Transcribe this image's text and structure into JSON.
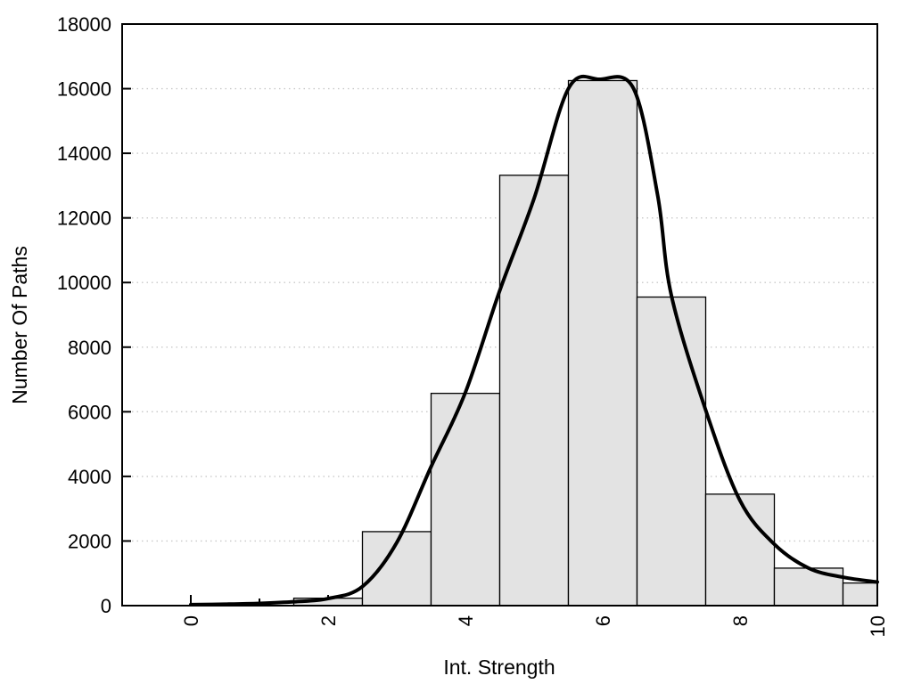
{
  "chart_data": {
    "type": "bar",
    "subtype": "histogram-with-density-curve",
    "title": "",
    "xlabel": "Int. Strength",
    "ylabel": "Number Of Paths",
    "xlim": [
      -1,
      10
    ],
    "ylim": [
      0,
      18000
    ],
    "x_major_ticks": [
      0,
      2,
      4,
      6,
      8,
      10
    ],
    "x_minor_ticks": [
      1,
      3,
      5,
      7,
      9
    ],
    "y_ticks": [
      0,
      2000,
      4000,
      6000,
      8000,
      10000,
      12000,
      14000,
      16000,
      18000
    ],
    "grid": {
      "horizontal": true,
      "vertical": false,
      "style": "dotted"
    },
    "legend": "none",
    "bars": {
      "bin_width": 1,
      "clip_max_x": 10,
      "centers": [
        2,
        3,
        4,
        5,
        6,
        7,
        8,
        9,
        10
      ],
      "values": [
        230,
        2290,
        6570,
        13320,
        16250,
        9550,
        3450,
        1160,
        700
      ]
    },
    "density_curve": {
      "points": [
        [
          0,
          30
        ],
        [
          0.5,
          45
        ],
        [
          1,
          70
        ],
        [
          1.5,
          120
        ],
        [
          2,
          220
        ],
        [
          2.5,
          590
        ],
        [
          3,
          1950
        ],
        [
          3.5,
          4300
        ],
        [
          4,
          6600
        ],
        [
          4.5,
          9750
        ],
        [
          5,
          12600
        ],
        [
          5.5,
          16000
        ],
        [
          5.95,
          16290
        ],
        [
          6.45,
          16000
        ],
        [
          6.8,
          12700
        ],
        [
          7,
          9600
        ],
        [
          7.5,
          6050
        ],
        [
          8,
          3250
        ],
        [
          8.5,
          1900
        ],
        [
          9,
          1160
        ],
        [
          9.5,
          880
        ],
        [
          10,
          730
        ]
      ]
    },
    "colors": {
      "bar_fill": "#e3e3e3",
      "bar_stroke": "#000000",
      "curve": "#000000",
      "grid": "#c8c8c8",
      "axis": "#000000",
      "text": "#000000",
      "background": "#ffffff"
    }
  }
}
